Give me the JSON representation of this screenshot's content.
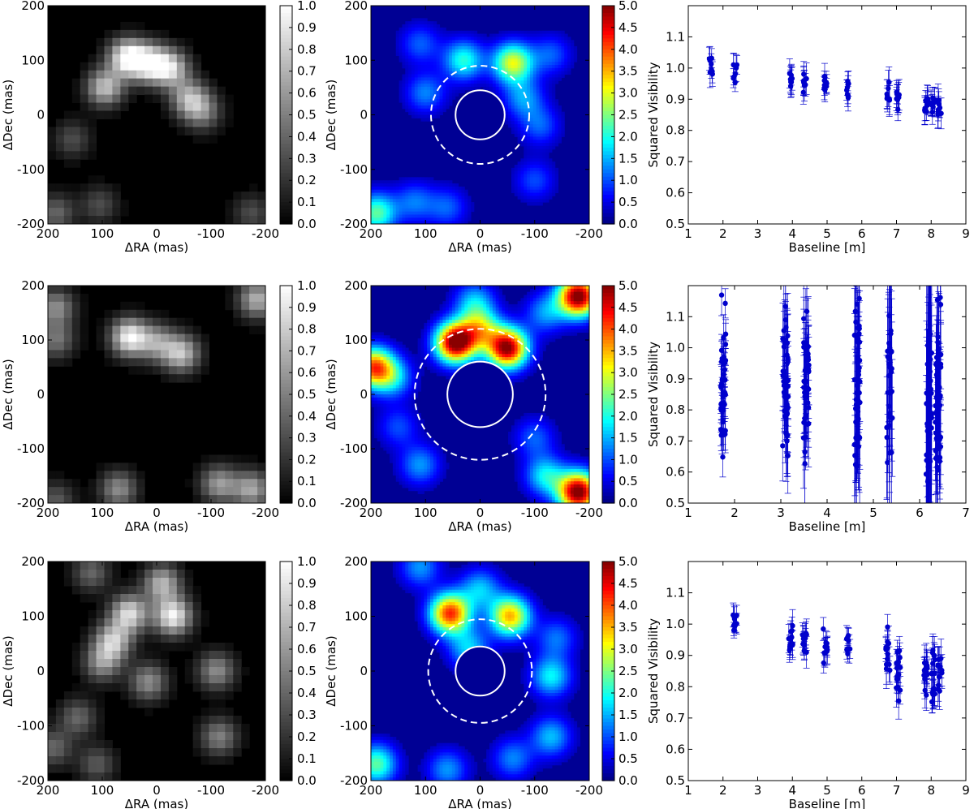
{
  "figure": {
    "rows": [
      {
        "map": {
          "xlabel": "ΔRA (mas)",
          "ylabel": "ΔDec (mas)",
          "ticks": [
            "200",
            "100",
            "0",
            "-100",
            "-200"
          ],
          "colorbar_ticks": [
            "1.0",
            "0.9",
            "0.8",
            "0.7",
            "0.6",
            "0.5",
            "0.4",
            "0.3",
            "0.2",
            "0.1",
            "0.0"
          ]
        },
        "snr": {
          "xlabel": "ΔRA (mas)",
          "ylabel": "ΔDec (mas)",
          "ticks": [
            "200",
            "100",
            "0",
            "-100",
            "-200"
          ],
          "colorbar_ticks": [
            "5.0",
            "4.5",
            "4.0",
            "3.5",
            "3.0",
            "2.5",
            "2.0",
            "1.5",
            "1.0",
            "0.5",
            "0.0"
          ]
        },
        "vis": {
          "xlabel": "Baseline [m]",
          "ylabel": "Squared Visibility",
          "xticks": [
            "1",
            "2",
            "3",
            "4",
            "5",
            "6",
            "7",
            "8",
            "9"
          ],
          "yticks": [
            "0.5",
            "0.6",
            "0.7",
            "0.8",
            "0.9",
            "1.0",
            "1.1"
          ]
        }
      },
      {
        "map": {
          "xlabel": "ΔRA (mas)",
          "ylabel": "ΔDec (mas)",
          "ticks": [
            "200",
            "100",
            "0",
            "-100",
            "-200"
          ],
          "colorbar_ticks": [
            "1.0",
            "0.9",
            "0.8",
            "0.7",
            "0.6",
            "0.5",
            "0.4",
            "0.3",
            "0.2",
            "0.1",
            "0.0"
          ]
        },
        "snr": {
          "xlabel": "ΔRA (mas)",
          "ylabel": "ΔDec (mas)",
          "ticks": [
            "200",
            "100",
            "0",
            "-100",
            "-200"
          ],
          "colorbar_ticks": [
            "5.0",
            "4.5",
            "4.0",
            "3.5",
            "3.0",
            "2.5",
            "2.0",
            "1.5",
            "1.0",
            "0.5",
            "0.0"
          ]
        },
        "vis": {
          "xlabel": "Baseline [m]",
          "ylabel": "Squared Visibility",
          "xticks": [
            "1",
            "2",
            "3",
            "4",
            "5",
            "6",
            "7"
          ],
          "yticks": [
            "0.5",
            "0.6",
            "0.7",
            "0.8",
            "0.9",
            "1.0",
            "1.1"
          ]
        }
      },
      {
        "map": {
          "xlabel": "ΔRA (mas)",
          "ylabel": "ΔDec (mas)",
          "ticks": [
            "200",
            "100",
            "0",
            "-100",
            "-200"
          ],
          "colorbar_ticks": [
            "1.0",
            "0.9",
            "0.8",
            "0.7",
            "0.6",
            "0.5",
            "0.4",
            "0.3",
            "0.2",
            "0.1",
            "0.0"
          ]
        },
        "snr": {
          "xlabel": "ΔRA (mas)",
          "ylabel": "ΔDec (mas)",
          "ticks": [
            "200",
            "100",
            "0",
            "-100",
            "-200"
          ],
          "colorbar_ticks": [
            "5.0",
            "4.5",
            "4.0",
            "3.5",
            "3.0",
            "2.5",
            "2.0",
            "1.5",
            "1.0",
            "0.5",
            "0.0"
          ]
        },
        "vis": {
          "xlabel": "Baseline [m]",
          "ylabel": "Squared Visibility",
          "xticks": [
            "1",
            "2",
            "3",
            "4",
            "5",
            "6",
            "7",
            "8",
            "9"
          ],
          "yticks": [
            "0.5",
            "0.6",
            "0.7",
            "0.8",
            "0.9",
            "1.0",
            "1.1"
          ]
        }
      }
    ]
  },
  "chart_data": [
    {
      "type": "heatmap",
      "panel": "row1-map",
      "colormap": "gray",
      "x_range_mas": [
        200,
        -200
      ],
      "y_range_mas": [
        -200,
        200
      ],
      "clim": [
        0,
        1
      ],
      "blobs_mas": [
        {
          "ra": 55,
          "dec": 105,
          "amp": 0.95
        },
        {
          "ra": 15,
          "dec": 95,
          "amp": 0.9
        },
        {
          "ra": -25,
          "dec": 85,
          "amp": 0.8
        },
        {
          "ra": 95,
          "dec": 50,
          "amp": 0.75
        },
        {
          "ra": -60,
          "dec": 30,
          "amp": 0.65
        },
        {
          "ra": -85,
          "dec": 5,
          "amp": 0.45
        },
        {
          "ra": 155,
          "dec": -45,
          "amp": 0.3
        },
        {
          "ra": 105,
          "dec": -165,
          "amp": 0.3
        },
        {
          "ra": 185,
          "dec": -180,
          "amp": 0.4
        },
        {
          "ra": -175,
          "dec": -180,
          "amp": 0.3
        }
      ]
    },
    {
      "type": "heatmap",
      "panel": "row1-snr",
      "colormap": "jet",
      "x_range_mas": [
        200,
        -200
      ],
      "y_range_mas": [
        -200,
        200
      ],
      "clim": [
        0,
        5
      ],
      "inner_circle_radius_mas": 45,
      "outer_circle_radius_mas": 90,
      "blobs_mas": [
        {
          "ra": 30,
          "dec": 100,
          "amp": 2.0
        },
        {
          "ra": -60,
          "dec": 95,
          "amp": 3.0
        },
        {
          "ra": 110,
          "dec": 130,
          "amp": 1.0
        },
        {
          "ra": 100,
          "dec": 40,
          "amp": 1.2
        },
        {
          "ra": -130,
          "dec": 110,
          "amp": 1.0
        },
        {
          "ra": -80,
          "dec": 30,
          "amp": 1.3
        },
        {
          "ra": -110,
          "dec": -20,
          "amp": 1.0
        },
        {
          "ra": 190,
          "dec": -180,
          "amp": 2.3
        },
        {
          "ra": 120,
          "dec": -160,
          "amp": 1.1
        },
        {
          "ra": 60,
          "dec": -170,
          "amp": 1.0
        },
        {
          "ra": -100,
          "dec": -120,
          "amp": 0.9
        }
      ]
    },
    {
      "type": "scatter",
      "panel": "row1-vis",
      "xlim": [
        1,
        9
      ],
      "ylim": [
        0.5,
        1.2
      ],
      "xlabel": "Baseline [m]",
      "ylabel": "Squared Visibility",
      "clusters": [
        {
          "x": 1.65,
          "y": 1.01,
          "spread": 0.05,
          "n": 8,
          "err": 0.04
        },
        {
          "x": 2.35,
          "y": 0.985,
          "spread": 0.035,
          "n": 8,
          "err": 0.035
        },
        {
          "x": 3.95,
          "y": 0.965,
          "spread": 0.035,
          "n": 8,
          "err": 0.04
        },
        {
          "x": 4.35,
          "y": 0.955,
          "spread": 0.035,
          "n": 8,
          "err": 0.04
        },
        {
          "x": 4.95,
          "y": 0.945,
          "spread": 0.03,
          "n": 8,
          "err": 0.035
        },
        {
          "x": 5.6,
          "y": 0.935,
          "spread": 0.03,
          "n": 8,
          "err": 0.035
        },
        {
          "x": 6.75,
          "y": 0.925,
          "spread": 0.04,
          "n": 8,
          "err": 0.045
        },
        {
          "x": 7.05,
          "y": 0.9,
          "spread": 0.04,
          "n": 10,
          "err": 0.04
        },
        {
          "x": 7.85,
          "y": 0.88,
          "spread": 0.035,
          "n": 10,
          "err": 0.04
        },
        {
          "x": 8.05,
          "y": 0.885,
          "spread": 0.035,
          "n": 8,
          "err": 0.04
        },
        {
          "x": 8.25,
          "y": 0.875,
          "spread": 0.035,
          "n": 8,
          "err": 0.04
        }
      ]
    },
    {
      "type": "heatmap",
      "panel": "row2-map",
      "colormap": "gray",
      "x_range_mas": [
        200,
        -200
      ],
      "y_range_mas": [
        -200,
        200
      ],
      "clim": [
        0,
        1
      ],
      "blobs_mas": [
        {
          "ra": 50,
          "dec": 105,
          "amp": 0.95
        },
        {
          "ra": -45,
          "dec": 75,
          "amp": 0.75
        },
        {
          "ra": 0,
          "dec": 95,
          "amp": 0.55
        },
        {
          "ra": -185,
          "dec": 175,
          "amp": 0.7
        },
        {
          "ra": 185,
          "dec": 160,
          "amp": 0.55
        },
        {
          "ra": 185,
          "dec": 100,
          "amp": 0.45
        },
        {
          "ra": 70,
          "dec": -175,
          "amp": 0.55
        },
        {
          "ra": -115,
          "dec": -165,
          "amp": 0.6
        },
        {
          "ra": -175,
          "dec": -175,
          "amp": 0.65
        },
        {
          "ra": 185,
          "dec": -195,
          "amp": 0.35
        }
      ]
    },
    {
      "type": "heatmap",
      "panel": "row2-snr",
      "colormap": "jet",
      "x_range_mas": [
        200,
        -200
      ],
      "y_range_mas": [
        -200,
        200
      ],
      "clim": [
        0,
        5
      ],
      "inner_circle_radius_mas": 60,
      "outer_circle_radius_mas": 120,
      "blobs_mas": [
        {
          "ra": 45,
          "dec": 95,
          "amp": 5.2
        },
        {
          "ra": -50,
          "dec": 85,
          "amp": 5.0
        },
        {
          "ra": 0,
          "dec": 120,
          "amp": 2.5
        },
        {
          "ra": 10,
          "dec": 170,
          "amp": 1.5
        },
        {
          "ra": 195,
          "dec": 50,
          "amp": 3.8
        },
        {
          "ra": 160,
          "dec": 30,
          "amp": 1.5
        },
        {
          "ra": -180,
          "dec": 180,
          "amp": 5.2
        },
        {
          "ra": -120,
          "dec": 150,
          "amp": 1.3
        },
        {
          "ra": -180,
          "dec": -180,
          "amp": 5.2
        },
        {
          "ra": -120,
          "dec": -150,
          "amp": 1.8
        },
        {
          "ra": 110,
          "dec": -130,
          "amp": 1.3
        },
        {
          "ra": -100,
          "dec": -80,
          "amp": 1.0
        },
        {
          "ra": 150,
          "dec": -60,
          "amp": 0.9
        }
      ]
    },
    {
      "type": "scatter",
      "panel": "row2-vis",
      "xlim": [
        1,
        7
      ],
      "ylim": [
        0.5,
        1.2
      ],
      "xlabel": "Baseline [m]",
      "ylabel": "Squared Visibility",
      "clusters": [
        {
          "x": 1.75,
          "y": 0.9,
          "spread": 0.25,
          "n": 40,
          "err": 0.06
        },
        {
          "x": 3.1,
          "y": 0.88,
          "spread": 0.25,
          "n": 45,
          "err": 0.12
        },
        {
          "x": 3.55,
          "y": 0.88,
          "spread": 0.27,
          "n": 40,
          "err": 0.15
        },
        {
          "x": 4.65,
          "y": 0.9,
          "spread": 0.3,
          "n": 50,
          "err": 0.18
        },
        {
          "x": 5.35,
          "y": 0.9,
          "spread": 0.25,
          "n": 30,
          "err": 0.25
        },
        {
          "x": 6.2,
          "y": 0.85,
          "spread": 0.28,
          "n": 40,
          "err": 0.35
        },
        {
          "x": 6.4,
          "y": 0.86,
          "spread": 0.3,
          "n": 55,
          "err": 0.15
        }
      ]
    },
    {
      "type": "heatmap",
      "panel": "row3-map",
      "colormap": "gray",
      "x_range_mas": [
        200,
        -200
      ],
      "y_range_mas": [
        -200,
        200
      ],
      "clim": [
        0,
        1
      ],
      "blobs_mas": [
        {
          "ra": -30,
          "dec": 100,
          "amp": 0.95
        },
        {
          "ra": 50,
          "dec": 105,
          "amp": 0.85
        },
        {
          "ra": 80,
          "dec": 55,
          "amp": 0.75
        },
        {
          "ra": 100,
          "dec": 15,
          "amp": 0.55
        },
        {
          "ra": -10,
          "dec": 160,
          "amp": 0.7
        },
        {
          "ra": 15,
          "dec": -20,
          "amp": 0.55
        },
        {
          "ra": -110,
          "dec": 0,
          "amp": 0.55
        },
        {
          "ra": -115,
          "dec": -120,
          "amp": 0.5
        },
        {
          "ra": 145,
          "dec": -85,
          "amp": 0.4
        },
        {
          "ra": 110,
          "dec": -170,
          "amp": 0.35
        },
        {
          "ra": 190,
          "dec": -140,
          "amp": 0.4
        },
        {
          "ra": 120,
          "dec": 180,
          "amp": 0.4
        }
      ]
    },
    {
      "type": "heatmap",
      "panel": "row3-snr",
      "colormap": "jet",
      "x_range_mas": [
        200,
        -200
      ],
      "y_range_mas": [
        -200,
        200
      ],
      "clim": [
        0,
        5
      ],
      "inner_circle_radius_mas": 45,
      "outer_circle_radius_mas": 95,
      "blobs_mas": [
        {
          "ra": 55,
          "dec": 105,
          "amp": 4.2
        },
        {
          "ra": -55,
          "dec": 100,
          "amp": 3.5
        },
        {
          "ra": 0,
          "dec": 150,
          "amp": 1.5
        },
        {
          "ra": 20,
          "dec": 40,
          "amp": 1.6
        },
        {
          "ra": -140,
          "dec": 60,
          "amp": 1.1
        },
        {
          "ra": -130,
          "dec": -10,
          "amp": 1.8
        },
        {
          "ra": 190,
          "dec": -170,
          "amp": 2.3
        },
        {
          "ra": -130,
          "dec": -120,
          "amp": 1.5
        },
        {
          "ra": 60,
          "dec": -180,
          "amp": 1.3
        },
        {
          "ra": -60,
          "dec": -160,
          "amp": 1.2
        },
        {
          "ra": 110,
          "dec": 190,
          "amp": 1.3
        }
      ]
    },
    {
      "type": "scatter",
      "panel": "row3-vis",
      "xlim": [
        1,
        9
      ],
      "ylim": [
        0.5,
        1.2
      ],
      "xlabel": "Baseline [m]",
      "ylabel": "Squared Visibility",
      "clusters": [
        {
          "x": 2.35,
          "y": 1.0,
          "spread": 0.04,
          "n": 10,
          "err": 0.03
        },
        {
          "x": 3.95,
          "y": 0.94,
          "spread": 0.05,
          "n": 12,
          "err": 0.04
        },
        {
          "x": 4.35,
          "y": 0.935,
          "spread": 0.05,
          "n": 12,
          "err": 0.04
        },
        {
          "x": 4.95,
          "y": 0.93,
          "spread": 0.05,
          "n": 10,
          "err": 0.04
        },
        {
          "x": 5.6,
          "y": 0.94,
          "spread": 0.04,
          "n": 8,
          "err": 0.035
        },
        {
          "x": 6.75,
          "y": 0.88,
          "spread": 0.09,
          "n": 12,
          "err": 0.05
        },
        {
          "x": 7.05,
          "y": 0.86,
          "spread": 0.1,
          "n": 16,
          "err": 0.05
        },
        {
          "x": 7.85,
          "y": 0.84,
          "spread": 0.08,
          "n": 14,
          "err": 0.05
        },
        {
          "x": 8.05,
          "y": 0.83,
          "spread": 0.09,
          "n": 16,
          "err": 0.05
        },
        {
          "x": 8.25,
          "y": 0.84,
          "spread": 0.07,
          "n": 12,
          "err": 0.05
        }
      ]
    }
  ]
}
